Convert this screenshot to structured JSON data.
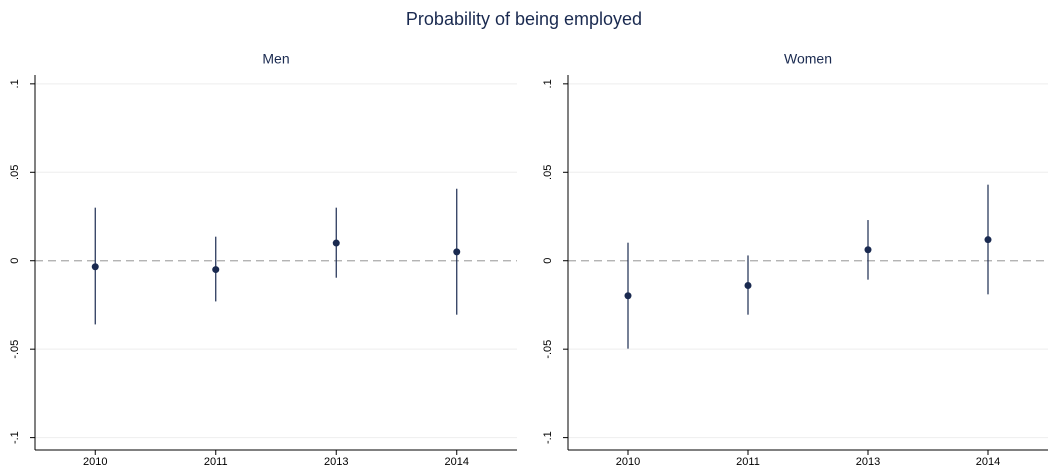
{
  "title": "Probability of being employed",
  "chart_data": [
    {
      "type": "errorbar",
      "title": "Men",
      "categories": [
        "2010",
        "2011",
        "2013",
        "2014"
      ],
      "series": [
        {
          "color": "#1a2a50",
          "values": [
            -0.0034,
            -0.005,
            0.01,
            0.005
          ],
          "lower": [
            -0.036,
            -0.023,
            -0.0096,
            -0.0305
          ],
          "upper": [
            0.03,
            0.0136,
            0.03,
            0.0407
          ]
        }
      ],
      "ylim": [
        -0.107,
        0.105
      ],
      "yticks": [
        {
          "value": -0.1,
          "label": "-.1"
        },
        {
          "value": -0.05,
          "label": "-.05"
        },
        0,
        {
          "value": 0.05,
          "label": ".05"
        },
        {
          "value": 0.1,
          "label": ".1"
        }
      ],
      "grid": true,
      "reference_line": 0
    },
    {
      "type": "errorbar",
      "title": "Women",
      "categories": [
        "2010",
        "2011",
        "2013",
        "2014"
      ],
      "series": [
        {
          "color": "#1a2a50",
          "values": [
            -0.0198,
            -0.014,
            0.0062,
            0.0119
          ],
          "lower": [
            -0.0497,
            -0.0305,
            -0.0107,
            -0.019
          ],
          "upper": [
            0.0102,
            0.003,
            0.023,
            0.043
          ]
        }
      ],
      "ylim": [
        -0.107,
        0.105
      ],
      "yticks": [
        {
          "value": -0.1,
          "label": "-.1"
        },
        {
          "value": -0.05,
          "label": "-.05"
        },
        0,
        {
          "value": 0.05,
          "label": ".05"
        },
        {
          "value": 0.1,
          "label": ".1"
        }
      ],
      "grid": true,
      "reference_line": 0
    }
  ]
}
